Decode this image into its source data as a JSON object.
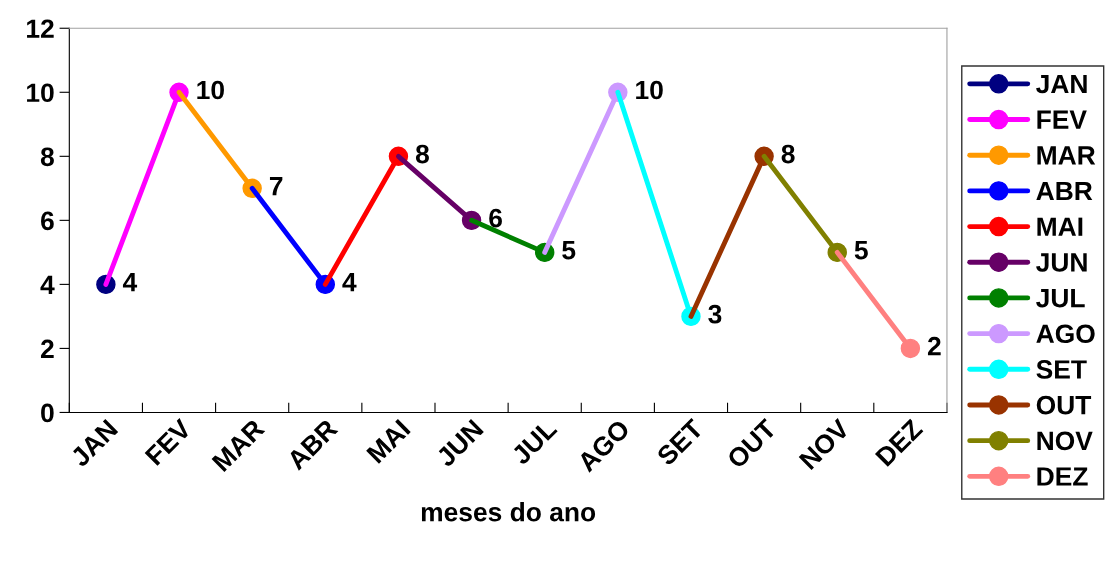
{
  "chart_data": {
    "type": "line",
    "xlabel": "meses do ano",
    "categories": [
      "JAN",
      "FEV",
      "MAR",
      "ABR",
      "MAI",
      "JUN",
      "JUL",
      "AGO",
      "SET",
      "OUT",
      "NOV",
      "DEZ"
    ],
    "series": [
      {
        "name": "JAN",
        "color": "#000080",
        "values": [
          4,
          null,
          null,
          null,
          null,
          null,
          null,
          null,
          null,
          null,
          null,
          null
        ],
        "value_labels": [
          "4",
          null,
          null,
          null,
          null,
          null,
          null,
          null,
          null,
          null,
          null,
          null
        ]
      },
      {
        "name": "FEV",
        "color": "#ff00ff",
        "values": [
          4,
          10,
          null,
          null,
          null,
          null,
          null,
          null,
          null,
          null,
          null,
          null
        ],
        "value_labels": [
          null,
          "10",
          null,
          null,
          null,
          null,
          null,
          null,
          null,
          null,
          null,
          null
        ]
      },
      {
        "name": "MAR",
        "color": "#ff9900",
        "values": [
          null,
          10,
          7,
          null,
          null,
          null,
          null,
          null,
          null,
          null,
          null,
          null
        ],
        "value_labels": [
          null,
          null,
          "7",
          null,
          null,
          null,
          null,
          null,
          null,
          null,
          null,
          null
        ]
      },
      {
        "name": "ABR",
        "color": "#0000ff",
        "values": [
          null,
          null,
          7,
          4,
          null,
          null,
          null,
          null,
          null,
          null,
          null,
          null
        ],
        "value_labels": [
          null,
          null,
          null,
          "4",
          null,
          null,
          null,
          null,
          null,
          null,
          null,
          null
        ]
      },
      {
        "name": "MAI",
        "color": "#ff0000",
        "values": [
          null,
          null,
          null,
          4,
          8,
          null,
          null,
          null,
          null,
          null,
          null,
          null
        ],
        "value_labels": [
          null,
          null,
          null,
          null,
          "8",
          null,
          null,
          null,
          null,
          null,
          null,
          null
        ]
      },
      {
        "name": "JUN",
        "color": "#660066",
        "values": [
          null,
          null,
          null,
          null,
          8,
          6,
          null,
          null,
          null,
          null,
          null,
          null
        ],
        "value_labels": [
          null,
          null,
          null,
          null,
          null,
          "6",
          null,
          null,
          null,
          null,
          null,
          null
        ]
      },
      {
        "name": "JUL",
        "color": "#008000",
        "values": [
          null,
          null,
          null,
          null,
          null,
          6,
          5,
          null,
          null,
          null,
          null,
          null
        ],
        "value_labels": [
          null,
          null,
          null,
          null,
          null,
          null,
          "5",
          null,
          null,
          null,
          null,
          null
        ]
      },
      {
        "name": "AGO",
        "color": "#cc99ff",
        "values": [
          null,
          null,
          null,
          null,
          null,
          null,
          5,
          10,
          null,
          null,
          null,
          null
        ],
        "value_labels": [
          null,
          null,
          null,
          null,
          null,
          null,
          null,
          "10",
          null,
          null,
          null,
          null
        ]
      },
      {
        "name": "SET",
        "color": "#00ffff",
        "values": [
          null,
          null,
          null,
          null,
          null,
          null,
          null,
          10,
          3,
          null,
          null,
          null
        ],
        "value_labels": [
          null,
          null,
          null,
          null,
          null,
          null,
          null,
          null,
          "3",
          null,
          null,
          null
        ]
      },
      {
        "name": "OUT",
        "color": "#993300",
        "values": [
          null,
          null,
          null,
          null,
          null,
          null,
          null,
          null,
          3,
          8,
          null,
          null
        ],
        "value_labels": [
          null,
          null,
          null,
          null,
          null,
          null,
          null,
          null,
          null,
          "8",
          null,
          null
        ]
      },
      {
        "name": "NOV",
        "color": "#808000",
        "values": [
          null,
          null,
          null,
          null,
          null,
          null,
          null,
          null,
          null,
          8,
          5,
          null
        ],
        "value_labels": [
          null,
          null,
          null,
          null,
          null,
          null,
          null,
          null,
          null,
          null,
          "5",
          null
        ]
      },
      {
        "name": "DEZ",
        "color": "#ff8080",
        "values": [
          null,
          null,
          null,
          null,
          null,
          null,
          null,
          null,
          null,
          null,
          5,
          2
        ],
        "value_labels": [
          null,
          null,
          null,
          null,
          null,
          null,
          null,
          null,
          null,
          null,
          null,
          "2"
        ]
      }
    ],
    "ylim": [
      0,
      12
    ],
    "yticks": [
      0,
      2,
      4,
      6,
      8,
      10,
      12
    ],
    "legend": "right",
    "marker": "circle",
    "line_style": "solid",
    "grid": false
  }
}
